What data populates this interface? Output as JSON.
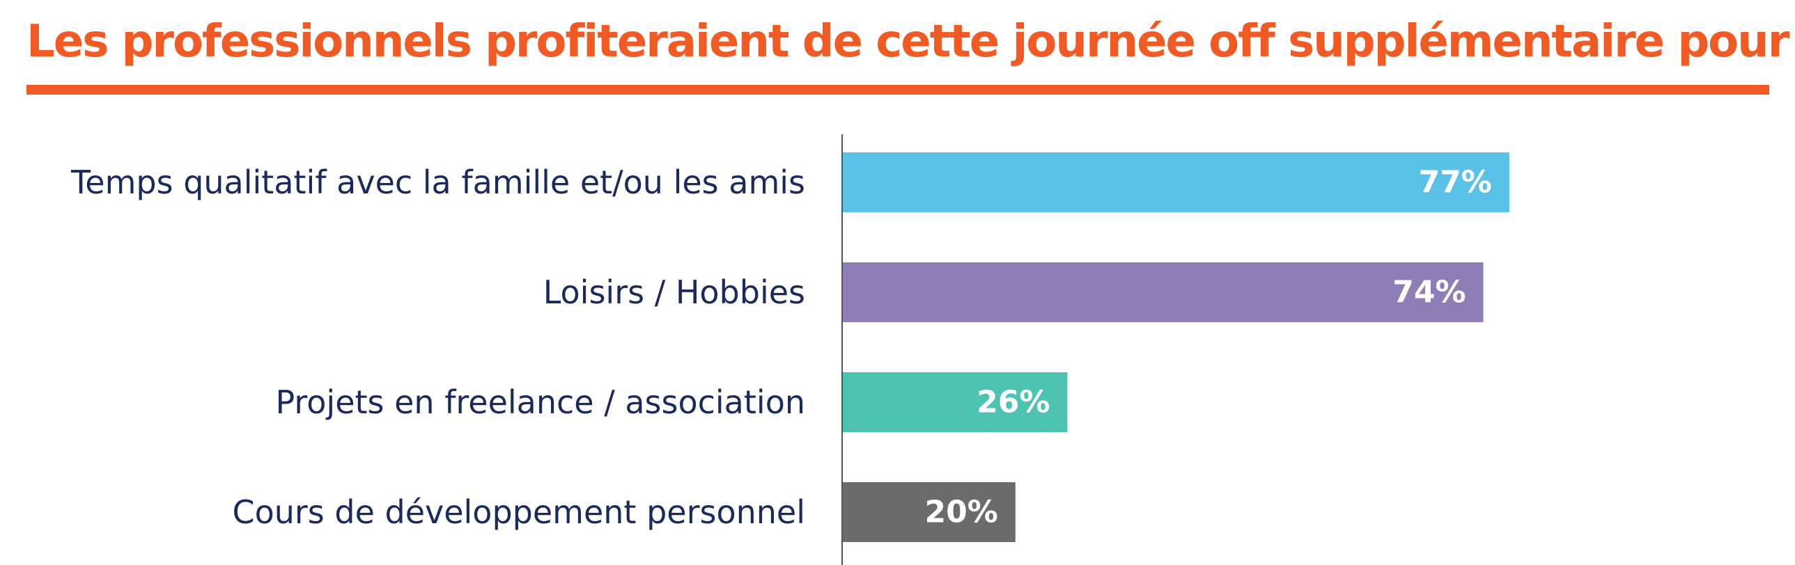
{
  "header": {
    "title": "Les professionnels profiteraient de cette journée off supplémentaire pour :"
  },
  "chart_data": {
    "type": "bar",
    "orientation": "horizontal",
    "title": "Les professionnels profiteraient de cette journée off supplémentaire pour :",
    "xlabel": "",
    "ylabel": "",
    "grid": false,
    "xlim": [
      0,
      100
    ],
    "categories": [
      "Temps qualitatif avec la famille et/ou les amis",
      "Loisirs / Hobbies",
      "Projets en freelance / association",
      "Cours de développement personnel"
    ],
    "values": [
      77,
      74,
      26,
      20
    ],
    "value_labels": [
      "77%",
      "74%",
      "26%",
      "20%"
    ],
    "colors": [
      "#5bc2e7",
      "#8f7db5",
      "#4cc4b0",
      "#6b6b6b"
    ],
    "title_color": "#f15a22",
    "label_color": "#1b2a5e",
    "value_label_color": "#ffffff",
    "axis_color": "#555555"
  }
}
